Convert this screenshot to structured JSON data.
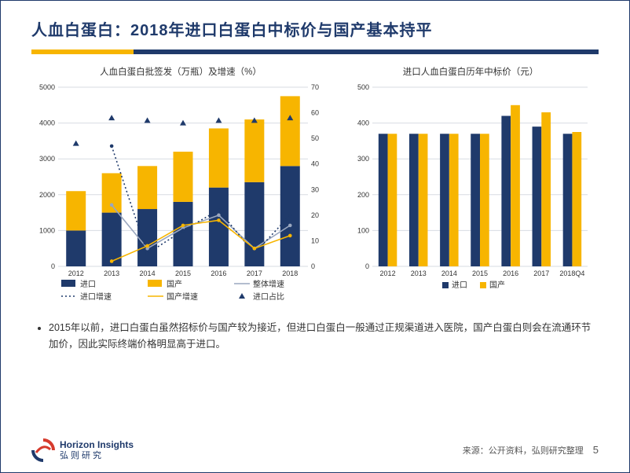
{
  "title": "人血白蛋白：2018年进口白蛋白中标价与国产基本持平",
  "chart_left": {
    "title": "人血白蛋白批签发（万瓶）及增速（%）",
    "type": "bar+line",
    "categories": [
      "2012",
      "2013",
      "2014",
      "2015",
      "2016",
      "2017",
      "2018"
    ],
    "y_left": {
      "min": 0,
      "max": 5000,
      "step": 1000
    },
    "y_right": {
      "min": 0,
      "max": 70,
      "step": 10
    },
    "series": {
      "import_bar": {
        "label": "进口",
        "color": "#1f3a6b",
        "values": [
          1000,
          1500,
          1600,
          1800,
          2200,
          2350,
          2800
        ]
      },
      "domestic_bar": {
        "label": "国产",
        "color": "#f7b500",
        "values": [
          1100,
          1100,
          1200,
          1400,
          1650,
          1750,
          1950
        ]
      },
      "total_growth": {
        "label": "整体增速",
        "color": "#9aa7bf",
        "values": [
          null,
          24,
          7,
          15,
          20,
          7,
          16
        ],
        "style": "solid"
      },
      "import_growth": {
        "label": "进口增速",
        "color": "#1f3a6b",
        "values": [
          null,
          47,
          5,
          14,
          22,
          5,
          20
        ],
        "style": "dotted"
      },
      "domestic_growth": {
        "label": "国产增速",
        "color": "#f7b500",
        "values": [
          null,
          2,
          8,
          16,
          18,
          7,
          12
        ],
        "style": "solid"
      },
      "import_share": {
        "label": "进口占比",
        "color": "#1f3a6b",
        "values": [
          48,
          58,
          57,
          56,
          57,
          57,
          58
        ],
        "style": "triangle"
      }
    },
    "bar_width": 0.55
  },
  "chart_right": {
    "title": "进口人血白蛋白历年中标价（元）",
    "type": "bar",
    "categories": [
      "2012",
      "2013",
      "2014",
      "2015",
      "2016",
      "2017",
      "2018Q4"
    ],
    "y": {
      "min": 0,
      "max": 500,
      "step": 100
    },
    "series": {
      "import": {
        "label": "进口",
        "color": "#1f3a6b",
        "values": [
          370,
          370,
          370,
          370,
          420,
          390,
          370
        ]
      },
      "domestic": {
        "label": "国产",
        "color": "#f7b500",
        "values": [
          370,
          370,
          370,
          370,
          450,
          430,
          375
        ]
      }
    },
    "bar_width": 0.6
  },
  "bullet": "2015年以前，进口白蛋白虽然招标价与国产较为接近，但进口白蛋白一般通过正规渠道进入医院，国产白蛋白则会在流通环节加价，因此实际终端价格明显高于进口。",
  "footer": {
    "logo_en": "Horizon Insights",
    "logo_cn": "弘则研究",
    "source_label": "来源：",
    "source": "公开资料，弘则研究整理",
    "page": "5"
  },
  "colors": {
    "accent_yellow": "#f7b500",
    "accent_navy": "#1f3a6b",
    "grid": "#d7dbe2",
    "axis_text": "#555555"
  }
}
